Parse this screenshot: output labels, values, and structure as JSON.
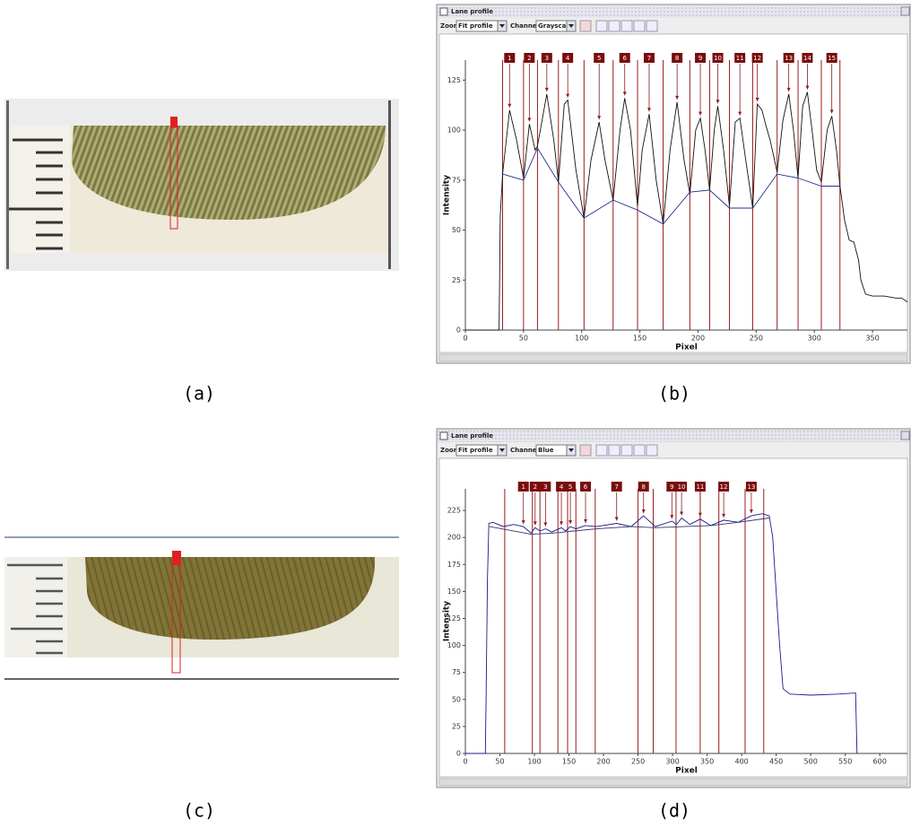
{
  "figure": {
    "captions": [
      "(a)",
      "(b)",
      "(c)",
      "(d)"
    ],
    "windows": [
      {
        "title": "Lane profile",
        "zoom_label": "Zoom:",
        "zoom": "Fit profile",
        "channel_label": "Channel:",
        "channel": "Grayscale"
      },
      {
        "title": "Lane profile",
        "zoom_label": "Zoom:",
        "zoom": "Fit profile",
        "channel_label": "Channel:",
        "channel": "Blue"
      }
    ]
  },
  "chart_data": [
    {
      "type": "line",
      "xlabel": "Pixel",
      "ylabel": "Intensity",
      "xlim": [
        0,
        380
      ],
      "ylim": [
        0,
        135
      ],
      "xticks": [
        0,
        50,
        100,
        150,
        200,
        250,
        300,
        350
      ],
      "yticks": [
        0,
        25,
        50,
        75,
        100,
        125
      ],
      "series": [
        {
          "color": "#111111",
          "x": [
            0,
            29,
            30,
            32,
            38,
            44,
            50,
            55,
            60,
            62,
            70,
            76,
            80,
            85,
            88,
            95,
            102,
            108,
            115,
            120,
            127,
            133,
            137,
            142,
            148,
            152,
            158,
            164,
            170,
            176,
            182,
            188,
            193,
            198,
            202,
            206,
            210,
            214,
            217,
            222,
            227,
            232,
            236,
            241,
            247,
            251,
            255,
            258,
            262,
            268,
            273,
            278,
            282,
            286,
            290,
            294,
            298,
            302,
            306,
            311,
            315,
            319,
            322,
            326,
            330,
            334,
            338,
            340,
            344,
            350,
            360,
            370,
            375,
            380
          ],
          "values": [
            0,
            0,
            57,
            78,
            110,
            95,
            76,
            103,
            90,
            92,
            118,
            95,
            74,
            113,
            115,
            80,
            56,
            85,
            104,
            85,
            65,
            100,
            116,
            100,
            62,
            90,
            108,
            75,
            53,
            90,
            114,
            85,
            68,
            100,
            106,
            90,
            70,
            100,
            112,
            90,
            62,
            104,
            106,
            85,
            61,
            113,
            110,
            103,
            95,
            79,
            105,
            118,
            100,
            76,
            112,
            119,
            100,
            80,
            74,
            100,
            107,
            90,
            72,
            55,
            45,
            44,
            35,
            25,
            18,
            17,
            17,
            16,
            16,
            14
          ]
        },
        {
          "color": "#27328c",
          "x": [
            32,
            50,
            62,
            80,
            102,
            127,
            148,
            170,
            193,
            210,
            227,
            247,
            268,
            286,
            306,
            322
          ],
          "values": [
            78,
            75,
            91,
            74,
            56,
            65,
            60,
            53,
            69,
            70,
            61,
            61,
            78,
            76,
            72,
            72
          ]
        }
      ],
      "peaks": {
        "labels": [
          "1",
          "2",
          "3",
          "4",
          "5",
          "6",
          "7",
          "8",
          "9",
          "10",
          "11",
          "12",
          "13",
          "14",
          "15"
        ],
        "x": [
          38,
          55,
          70,
          88,
          115,
          137,
          158,
          182,
          202,
          217,
          236,
          251,
          278,
          294,
          315
        ]
      },
      "boundaries": [
        32,
        50,
        62,
        80,
        102,
        127,
        148,
        170,
        193,
        210,
        227,
        247,
        268,
        286,
        306,
        322
      ]
    },
    {
      "type": "line",
      "xlabel": "Pixel",
      "ylabel": "Intensity",
      "xlim": [
        0,
        640
      ],
      "ylim": [
        0,
        245
      ],
      "xticks": [
        0,
        50,
        100,
        150,
        200,
        250,
        300,
        350,
        400,
        450,
        500,
        550,
        600
      ],
      "yticks": [
        0,
        25,
        50,
        75,
        100,
        125,
        150,
        175,
        200,
        225
      ],
      "series": [
        {
          "color": "#1a1a8c",
          "x": [
            0,
            29,
            30,
            32,
            34,
            40,
            55,
            70,
            84,
            95,
            101,
            108,
            116,
            125,
            139,
            145,
            152,
            160,
            174,
            190,
            219,
            240,
            258,
            275,
            299,
            306,
            313,
            325,
            340,
            355,
            374,
            395,
            414,
            430,
            440,
            445,
            450,
            455,
            460,
            470,
            500,
            540,
            565,
            567
          ],
          "values": [
            0,
            0,
            50,
            160,
            213,
            214,
            210,
            212,
            210,
            204,
            209,
            206,
            208,
            205,
            209,
            206,
            210,
            208,
            211,
            210,
            213,
            210,
            220,
            210,
            215,
            212,
            218,
            212,
            217,
            211,
            216,
            214,
            220,
            222,
            220,
            200,
            150,
            100,
            60,
            55,
            54,
            55,
            56,
            0
          ]
        },
        {
          "color": "#333366",
          "x": [
            35,
            95,
            125,
            190,
            240,
            275,
            355,
            395,
            440
          ],
          "values": [
            210,
            203,
            204,
            208,
            210,
            209,
            211,
            214,
            218
          ]
        }
      ],
      "peaks": {
        "labels": [
          "1",
          "2",
          "3",
          "4",
          "5",
          "6",
          "7",
          "8",
          "9",
          "10",
          "11",
          "12",
          "13"
        ],
        "x": [
          84,
          101,
          116,
          139,
          152,
          174,
          219,
          258,
          299,
          313,
          340,
          374,
          414
        ]
      },
      "boundaries": [
        57,
        97,
        108,
        134,
        148,
        160,
        188,
        250,
        272,
        305,
        340,
        367,
        405,
        432
      ]
    }
  ]
}
